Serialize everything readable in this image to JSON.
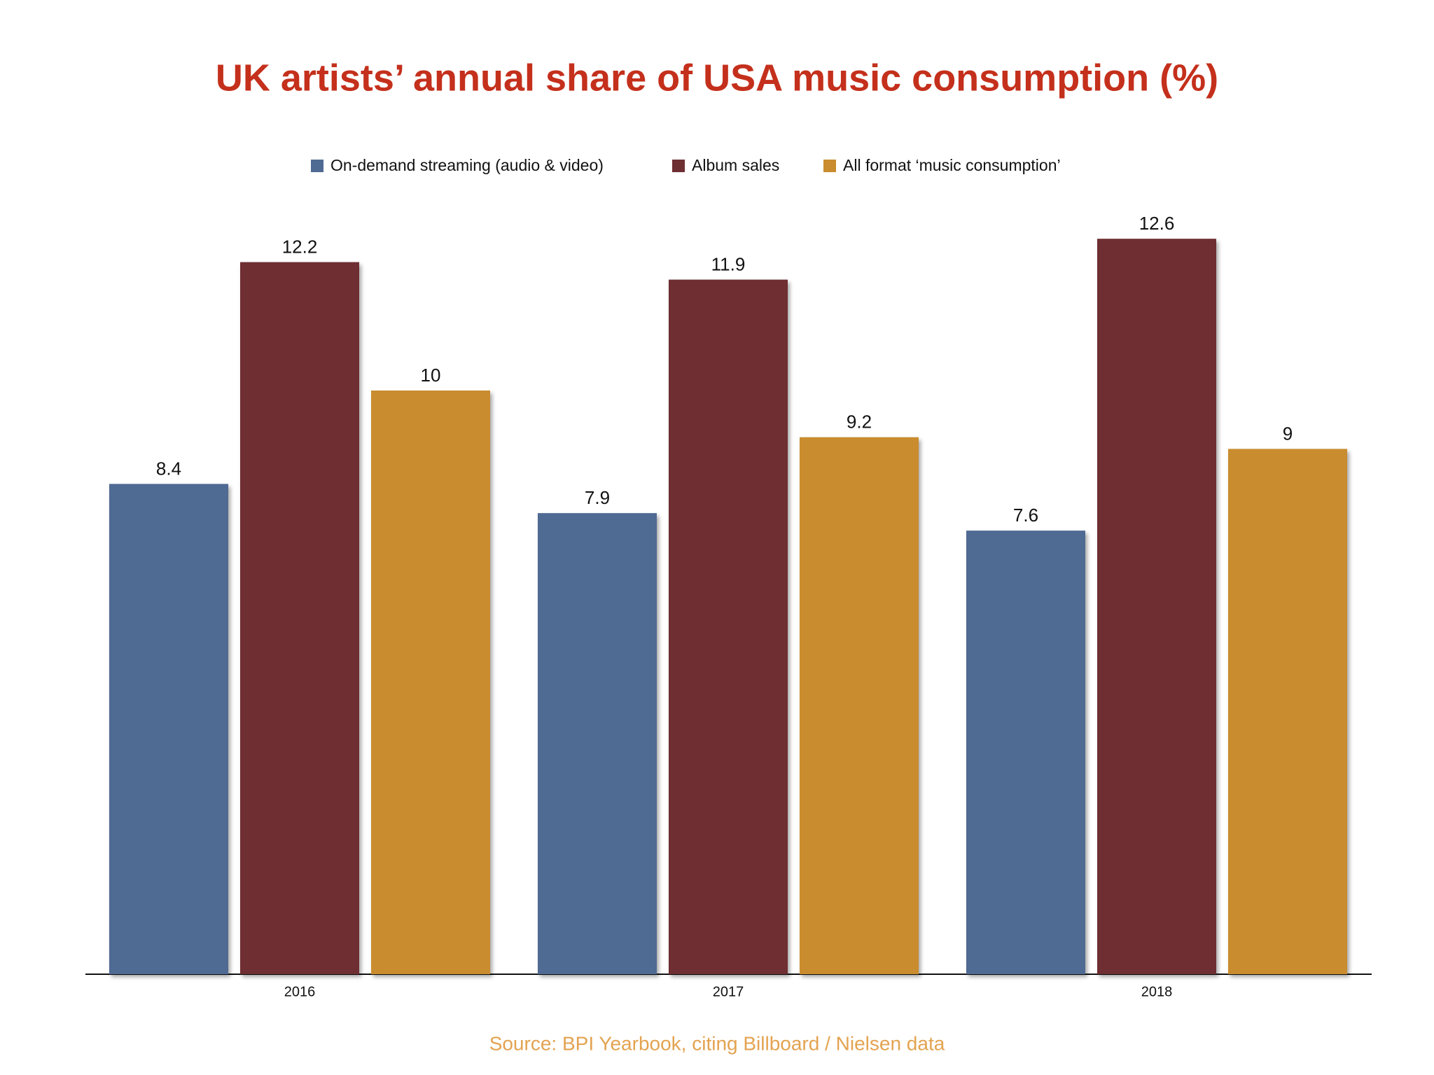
{
  "chart_data": {
    "type": "bar",
    "title": "UK artists’ annual share of USA music consumption (%)",
    "categories": [
      "2016",
      "2017",
      "2018"
    ],
    "series": [
      {
        "name": "On-demand streaming (audio & video)",
        "color": "#4f6b93",
        "values": [
          8.4,
          7.9,
          7.6
        ]
      },
      {
        "name": "Album sales",
        "color": "#6e2f33",
        "values": [
          12.2,
          11.9,
          12.6
        ]
      },
      {
        "name": "All format ‘music consumption’",
        "color": "#c98c2e",
        "values": [
          10,
          9.2,
          9
        ]
      }
    ],
    "source": "Source: BPI Yearbook, citing Billboard / Nielsen data"
  }
}
